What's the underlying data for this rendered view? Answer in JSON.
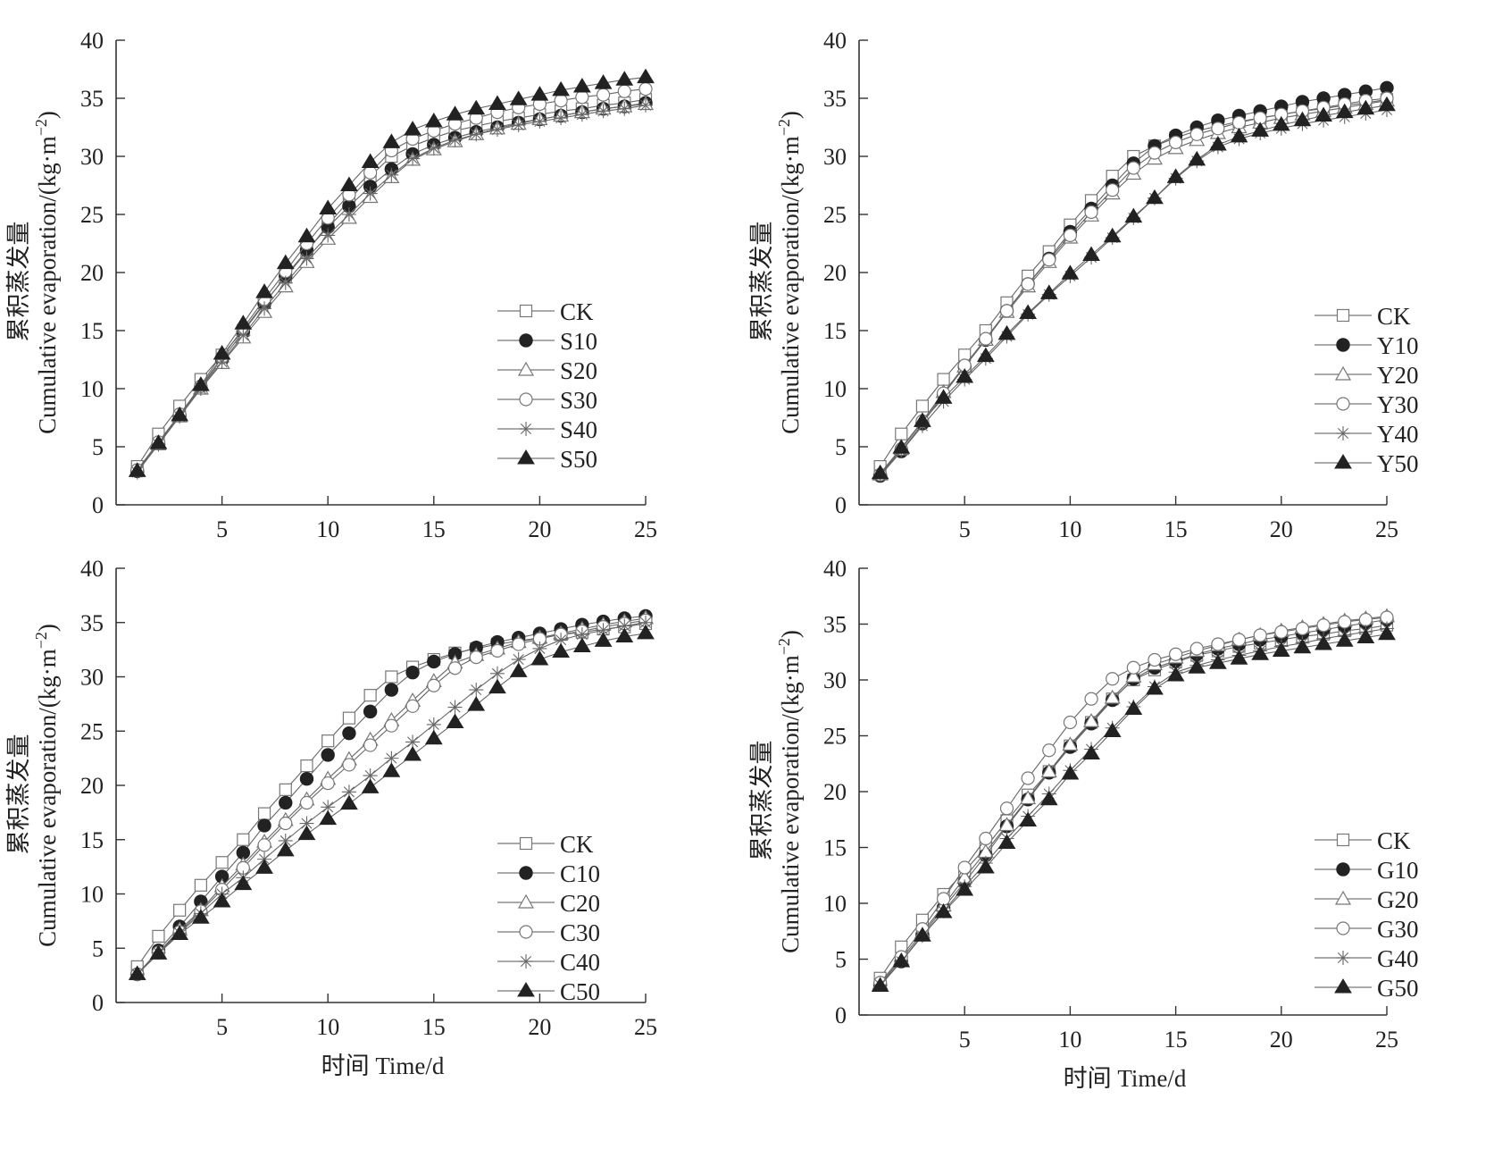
{
  "figure": {
    "ylabel_cn": "累积蒸发量",
    "ylabel_en": "Cumulative evaporation/(kg·m",
    "ylabel_sup": "−2",
    "ylabel_close": ")",
    "xlabel": "时间 Time/d"
  },
  "chart_data": [
    {
      "type": "line",
      "panel": "top-left",
      "title": "",
      "xlabel": "",
      "ylabel": "累积蒸发量 Cumulative evaporation/(kg·m−2)",
      "xlim": [
        0,
        25
      ],
      "ylim": [
        0,
        40
      ],
      "xticks": [
        5,
        10,
        15,
        20,
        25
      ],
      "yticks": [
        0,
        5,
        10,
        15,
        20,
        25,
        30,
        35,
        40
      ],
      "grid": false,
      "legend": "right-middle",
      "x": [
        1,
        2,
        3,
        4,
        5,
        6,
        7,
        8,
        9,
        10,
        11,
        12,
        13,
        14,
        15,
        16,
        17,
        18,
        19,
        20,
        21,
        22,
        23,
        24,
        25
      ],
      "series": [
        {
          "name": "CK",
          "marker": "square-open",
          "values": [
            3.3,
            6.1,
            8.5,
            10.8,
            12.9,
            15.0,
            17.4,
            19.6,
            21.8,
            24.1,
            26.2,
            28.3,
            30.0,
            30.9,
            31.6,
            32.2,
            32.6,
            33.0,
            33.3,
            33.6,
            33.9,
            34.1,
            34.4,
            34.6,
            34.9
          ]
        },
        {
          "name": "S10",
          "marker": "circle-filled",
          "values": [
            2.9,
            5.3,
            7.7,
            10.1,
            12.5,
            14.9,
            17.3,
            19.7,
            21.9,
            23.9,
            25.7,
            27.4,
            28.9,
            30.2,
            31.0,
            31.6,
            32.1,
            32.5,
            32.9,
            33.2,
            33.5,
            33.8,
            34.1,
            34.3,
            34.6
          ]
        },
        {
          "name": "S20",
          "marker": "triangle-open",
          "values": [
            2.9,
            5.2,
            7.6,
            10.0,
            12.2,
            14.4,
            16.6,
            18.8,
            20.9,
            22.9,
            24.7,
            26.5,
            28.2,
            29.7,
            30.6,
            31.3,
            31.9,
            32.4,
            32.8,
            33.2,
            33.5,
            33.8,
            34.1,
            34.3,
            34.5
          ]
        },
        {
          "name": "S30",
          "marker": "circle-open",
          "values": [
            3.0,
            5.4,
            7.8,
            10.2,
            12.7,
            15.2,
            17.7,
            20.1,
            22.5,
            24.7,
            26.7,
            28.6,
            30.5,
            31.5,
            32.2,
            32.8,
            33.3,
            33.8,
            34.2,
            34.5,
            34.8,
            35.1,
            35.3,
            35.6,
            35.8
          ]
        },
        {
          "name": "S40",
          "marker": "asterisk",
          "values": [
            2.8,
            5.2,
            7.6,
            10.0,
            12.3,
            14.6,
            16.9,
            19.1,
            21.2,
            23.2,
            25.0,
            26.8,
            28.4,
            29.8,
            30.7,
            31.4,
            31.9,
            32.3,
            32.7,
            33.0,
            33.3,
            33.6,
            33.9,
            34.1,
            34.4
          ]
        },
        {
          "name": "S50",
          "marker": "triangle-filled",
          "values": [
            2.9,
            5.3,
            7.7,
            10.3,
            13.0,
            15.6,
            18.3,
            20.8,
            23.1,
            25.5,
            27.5,
            29.5,
            31.2,
            32.3,
            33.0,
            33.6,
            34.1,
            34.5,
            34.9,
            35.3,
            35.7,
            36.0,
            36.3,
            36.6,
            36.8
          ]
        }
      ]
    },
    {
      "type": "line",
      "panel": "top-right",
      "title": "",
      "xlabel": "",
      "ylabel": "累积蒸发量 Cumulative evaporation/(kg·m−2)",
      "xlim": [
        0,
        25
      ],
      "ylim": [
        0,
        40
      ],
      "xticks": [
        5,
        10,
        15,
        20,
        25
      ],
      "yticks": [
        0,
        5,
        10,
        15,
        20,
        25,
        30,
        35,
        40
      ],
      "grid": false,
      "legend": "right-middle",
      "x": [
        1,
        2,
        3,
        4,
        5,
        6,
        7,
        8,
        9,
        10,
        11,
        12,
        13,
        14,
        15,
        16,
        17,
        18,
        19,
        20,
        21,
        22,
        23,
        24,
        25
      ],
      "series": [
        {
          "name": "CK",
          "marker": "square-open",
          "values": [
            3.3,
            6.1,
            8.5,
            10.8,
            12.9,
            15.0,
            17.4,
            19.7,
            21.8,
            24.1,
            26.2,
            28.3,
            30.0,
            30.9,
            31.6,
            32.2,
            32.6,
            33.0,
            33.3,
            33.6,
            33.9,
            34.1,
            34.4,
            34.6,
            34.9
          ]
        },
        {
          "name": "Y10",
          "marker": "circle-filled",
          "values": [
            2.5,
            4.6,
            7.0,
            9.5,
            11.9,
            14.2,
            16.7,
            19.0,
            21.2,
            23.5,
            25.5,
            27.5,
            29.4,
            30.9,
            31.8,
            32.5,
            33.1,
            33.5,
            33.9,
            34.3,
            34.7,
            35.0,
            35.3,
            35.6,
            35.9
          ]
        },
        {
          "name": "Y20",
          "marker": "triangle-open",
          "values": [
            2.6,
            4.8,
            7.2,
            9.7,
            11.9,
            14.2,
            16.6,
            18.8,
            20.9,
            23.0,
            24.9,
            26.8,
            28.5,
            29.8,
            30.7,
            31.4,
            32.0,
            32.5,
            32.9,
            33.3,
            33.6,
            33.9,
            34.2,
            34.5,
            34.8
          ]
        },
        {
          "name": "Y30",
          "marker": "circle-open",
          "values": [
            2.6,
            4.8,
            7.2,
            9.6,
            12.0,
            14.3,
            16.7,
            19.0,
            21.1,
            23.2,
            25.2,
            27.1,
            29.0,
            30.3,
            31.2,
            31.9,
            32.4,
            32.9,
            33.3,
            33.6,
            33.9,
            34.2,
            34.5,
            34.8,
            35.0
          ]
        },
        {
          "name": "Y40",
          "marker": "asterisk",
          "values": [
            2.6,
            4.6,
            6.8,
            8.9,
            10.8,
            12.6,
            14.5,
            16.4,
            18.1,
            19.7,
            21.3,
            23.0,
            24.7,
            26.4,
            28.1,
            29.6,
            30.8,
            31.5,
            32.0,
            32.4,
            32.8,
            33.1,
            33.4,
            33.7,
            34.0
          ]
        },
        {
          "name": "Y50",
          "marker": "triangle-filled",
          "values": [
            2.7,
            4.9,
            7.2,
            9.2,
            11.0,
            12.8,
            14.7,
            16.5,
            18.2,
            19.9,
            21.5,
            23.1,
            24.8,
            26.4,
            28.2,
            29.7,
            31.0,
            31.7,
            32.2,
            32.7,
            33.1,
            33.5,
            33.8,
            34.1,
            34.4
          ]
        }
      ]
    },
    {
      "type": "line",
      "panel": "bottom-left",
      "title": "",
      "xlabel": "时间 Time/d",
      "ylabel": "累积蒸发量 Cumulative evaporation/(kg·m−2)",
      "xlim": [
        0,
        25
      ],
      "ylim": [
        0,
        40
      ],
      "xticks": [
        5,
        10,
        15,
        20,
        25
      ],
      "yticks": [
        0,
        5,
        10,
        15,
        20,
        25,
        30,
        35,
        40
      ],
      "grid": false,
      "legend": "bottom-right",
      "x": [
        1,
        2,
        3,
        4,
        5,
        6,
        7,
        8,
        9,
        10,
        11,
        12,
        13,
        14,
        15,
        16,
        17,
        18,
        19,
        20,
        21,
        22,
        23,
        24,
        25
      ],
      "series": [
        {
          "name": "CK",
          "marker": "square-open",
          "values": [
            3.3,
            6.1,
            8.5,
            10.8,
            12.9,
            15.0,
            17.4,
            19.6,
            21.8,
            24.1,
            26.2,
            28.3,
            30.0,
            30.9,
            31.6,
            32.2,
            32.6,
            33.0,
            33.3,
            33.6,
            33.9,
            34.1,
            34.4,
            34.6,
            34.9
          ]
        },
        {
          "name": "C10",
          "marker": "circle-filled",
          "values": [
            2.6,
            4.8,
            7.0,
            9.3,
            11.6,
            13.8,
            16.3,
            18.4,
            20.6,
            22.8,
            24.8,
            26.8,
            28.8,
            30.4,
            31.4,
            32.1,
            32.7,
            33.2,
            33.6,
            34.0,
            34.4,
            34.8,
            35.1,
            35.4,
            35.6
          ]
        },
        {
          "name": "C20",
          "marker": "triangle-open",
          "values": [
            2.6,
            4.6,
            6.7,
            8.5,
            10.7,
            12.7,
            14.8,
            16.8,
            18.7,
            20.6,
            22.4,
            24.2,
            26.0,
            27.8,
            29.6,
            31.3,
            32.0,
            32.6,
            33.2,
            33.6,
            34.0,
            34.4,
            34.8,
            35.1,
            35.4
          ]
        },
        {
          "name": "C30",
          "marker": "circle-open",
          "values": [
            2.6,
            4.6,
            6.5,
            8.4,
            10.4,
            12.4,
            14.5,
            16.5,
            18.4,
            20.2,
            21.9,
            23.7,
            25.5,
            27.3,
            29.2,
            30.8,
            31.8,
            32.4,
            33.0,
            33.5,
            33.9,
            34.2,
            34.6,
            34.9,
            35.2
          ]
        },
        {
          "name": "C40",
          "marker": "asterisk",
          "values": [
            2.6,
            4.6,
            6.4,
            8.2,
            10.0,
            11.5,
            13.2,
            14.9,
            16.5,
            18.0,
            19.4,
            20.9,
            22.5,
            24.0,
            25.6,
            27.2,
            28.8,
            30.3,
            31.6,
            32.6,
            33.4,
            33.9,
            34.3,
            34.7,
            35.0
          ]
        },
        {
          "name": "C50",
          "marker": "triangle-filled",
          "values": [
            2.6,
            4.5,
            6.3,
            7.8,
            9.3,
            10.9,
            12.4,
            14.0,
            15.5,
            16.9,
            18.3,
            19.8,
            21.3,
            22.8,
            24.3,
            25.8,
            27.4,
            29.0,
            30.5,
            31.6,
            32.3,
            32.8,
            33.3,
            33.7,
            34.0
          ]
        }
      ]
    },
    {
      "type": "line",
      "panel": "bottom-right",
      "title": "",
      "xlabel": "时间 Time/d",
      "ylabel": "累积蒸发量 Cumulative evaporation/(kg·m−2)",
      "xlim": [
        0,
        25
      ],
      "ylim": [
        0,
        40
      ],
      "xticks": [
        5,
        10,
        15,
        20,
        25
      ],
      "yticks": [
        0,
        5,
        10,
        15,
        20,
        25,
        30,
        35,
        40
      ],
      "grid": false,
      "legend": "bottom-right",
      "x": [
        1,
        2,
        3,
        4,
        5,
        6,
        7,
        8,
        9,
        10,
        11,
        12,
        13,
        14,
        15,
        16,
        17,
        18,
        19,
        20,
        21,
        22,
        23,
        24,
        25
      ],
      "series": [
        {
          "name": "CK",
          "marker": "square-open",
          "values": [
            3.3,
            6.1,
            8.5,
            10.8,
            12.9,
            15.0,
            17.4,
            19.7,
            21.8,
            24.1,
            26.2,
            28.3,
            30.0,
            30.9,
            31.6,
            32.2,
            32.6,
            33.0,
            33.3,
            33.6,
            33.9,
            34.1,
            34.4,
            34.6,
            34.9
          ]
        },
        {
          "name": "G10",
          "marker": "circle-filled",
          "values": [
            2.7,
            4.8,
            7.2,
            9.6,
            11.9,
            14.3,
            16.9,
            19.3,
            21.7,
            24.0,
            26.1,
            28.2,
            30.1,
            31.1,
            31.7,
            32.3,
            32.8,
            33.2,
            33.6,
            33.9,
            34.2,
            34.5,
            34.8,
            35.1,
            35.4
          ]
        },
        {
          "name": "G20",
          "marker": "triangle-open",
          "values": [
            2.8,
            5.0,
            7.4,
            9.8,
            12.3,
            14.6,
            17.0,
            19.4,
            21.8,
            24.2,
            26.3,
            28.4,
            30.3,
            31.4,
            32.0,
            32.6,
            33.1,
            33.6,
            34.0,
            34.4,
            34.7,
            35.0,
            35.3,
            35.5,
            35.7
          ]
        },
        {
          "name": "G30",
          "marker": "circle-open",
          "values": [
            2.9,
            5.2,
            7.7,
            10.4,
            13.2,
            15.8,
            18.5,
            21.2,
            23.7,
            26.2,
            28.3,
            30.1,
            31.1,
            31.8,
            32.3,
            32.8,
            33.2,
            33.6,
            34.0,
            34.3,
            34.6,
            34.9,
            35.2,
            35.4,
            35.6
          ]
        },
        {
          "name": "G40",
          "marker": "asterisk",
          "values": [
            2.7,
            4.8,
            7.1,
            9.3,
            11.5,
            13.6,
            15.8,
            17.8,
            19.8,
            21.9,
            23.8,
            25.7,
            27.6,
            29.4,
            30.7,
            31.3,
            31.8,
            32.2,
            32.6,
            33.0,
            33.3,
            33.7,
            34.0,
            34.3,
            34.6
          ]
        },
        {
          "name": "G50",
          "marker": "triangle-filled",
          "values": [
            2.6,
            4.8,
            7.1,
            9.2,
            11.2,
            13.2,
            15.4,
            17.4,
            19.3,
            21.6,
            23.4,
            25.4,
            27.4,
            29.2,
            30.4,
            31.1,
            31.5,
            31.9,
            32.3,
            32.6,
            32.9,
            33.2,
            33.5,
            33.8,
            34.1
          ]
        }
      ]
    }
  ]
}
